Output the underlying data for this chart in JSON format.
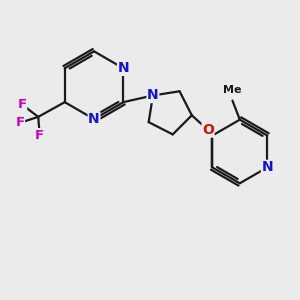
{
  "bg_color": "#ebebeb",
  "bond_color": "#1a1a1a",
  "N_color": "#1414cc",
  "O_color": "#cc1400",
  "F_color": "#cc00cc",
  "line_width": 1.6,
  "font_size": 9.5,
  "fig_size": [
    3.0,
    3.0
  ],
  "dpi": 100,
  "xlim": [
    0,
    10
  ],
  "ylim": [
    0,
    10
  ]
}
